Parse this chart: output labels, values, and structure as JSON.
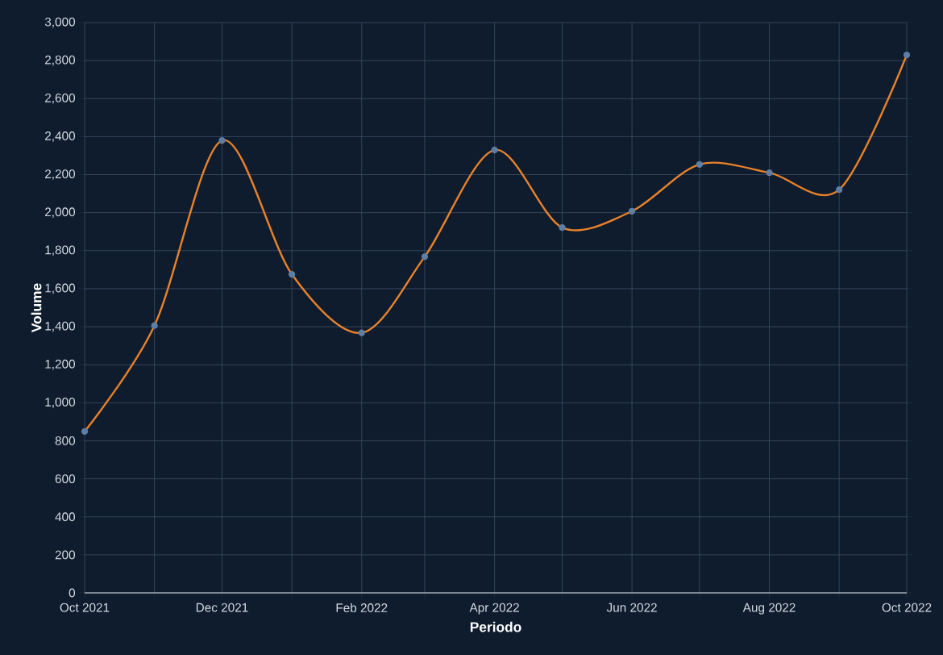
{
  "chart_data": {
    "type": "line",
    "xlabel": "Periodo",
    "ylabel": "Volume",
    "x": [
      "2021-10",
      "2021-11",
      "2021-12",
      "2022-01",
      "2022-02",
      "2022-03",
      "2022-04",
      "2022-05",
      "2022-06",
      "2022-07",
      "2022-08",
      "2022-09",
      "2022-10"
    ],
    "series": [
      {
        "color": "#e8822a",
        "values": [
          849,
          1406,
          2380,
          1676,
          1368,
          1769,
          2330,
          1922,
          2008,
          2254,
          2210,
          2121,
          2830
        ]
      }
    ],
    "xlim": [
      "2021-10",
      "2022-10"
    ],
    "xticks": [
      {
        "value": "2021-10",
        "label": "Oct 2021"
      },
      {
        "value": "2021-11",
        "label": null
      },
      {
        "value": "2021-12",
        "label": "Dec 2021"
      },
      {
        "value": "2022-01",
        "label": null
      },
      {
        "value": "2022-02",
        "label": "Feb 2022"
      },
      {
        "value": "2022-03",
        "label": null
      },
      {
        "value": "2022-04",
        "label": "Apr 2022"
      },
      {
        "value": "2022-05",
        "label": null
      },
      {
        "value": "2022-06",
        "label": "Jun 2022"
      },
      {
        "value": "2022-07",
        "label": null
      },
      {
        "value": "2022-08",
        "label": "Aug 2022"
      },
      {
        "value": "2022-09",
        "label": null
      },
      {
        "value": "2022-10",
        "label": "Oct 2022"
      }
    ],
    "ylim": [
      0,
      3000
    ],
    "yticks": [
      0,
      200,
      400,
      600,
      800,
      {
        "value": 1000,
        "label": "1,000"
      },
      {
        "value": 1200,
        "label": "1,200"
      },
      {
        "value": 1400,
        "label": "1,400"
      },
      {
        "value": 1600,
        "label": "1,600"
      },
      {
        "value": 1800,
        "label": "1,800"
      },
      {
        "value": 2000,
        "label": "2,000"
      },
      {
        "value": 2200,
        "label": "2,200"
      },
      {
        "value": 2400,
        "label": "2,400"
      },
      {
        "value": 2600,
        "label": "2,600"
      },
      {
        "value": 2800,
        "label": "2,800"
      },
      {
        "value": 3000,
        "label": "3,000"
      }
    ],
    "grid": true,
    "marker": "circle",
    "line_style": "solid"
  }
}
